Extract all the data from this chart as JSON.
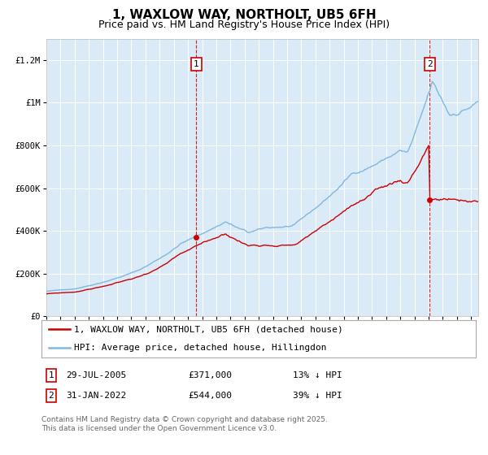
{
  "title": "1, WAXLOW WAY, NORTHOLT, UB5 6FH",
  "subtitle": "Price paid vs. HM Land Registry's House Price Index (HPI)",
  "ylim": [
    0,
    1300000
  ],
  "yticks": [
    0,
    200000,
    400000,
    600000,
    800000,
    1000000,
    1200000
  ],
  "ytick_labels": [
    "£0",
    "£200K",
    "£400K",
    "£600K",
    "£800K",
    "£1M",
    "£1.2M"
  ],
  "hpi_color": "#7fb8e0",
  "price_color": "#cc0000",
  "bg_color": "#daeaf6",
  "plot_bg": "#ffffff",
  "grid_color": "#ffffff",
  "legend_label_price": "1, WAXLOW WAY, NORTHOLT, UB5 6FH (detached house)",
  "legend_label_hpi": "HPI: Average price, detached house, Hillingdon",
  "event1_date": 2005.57,
  "event1_price": 371000,
  "event2_date": 2022.08,
  "event2_price": 544000,
  "event1_text": "29-JUL-2005",
  "event1_amount": "£371,000",
  "event1_hpi_text": "13% ↓ HPI",
  "event2_text": "31-JAN-2022",
  "event2_amount": "£544,000",
  "event2_hpi_text": "39% ↓ HPI",
  "footer": "Contains HM Land Registry data © Crown copyright and database right 2025.\nThis data is licensed under the Open Government Licence v3.0.",
  "title_fontsize": 11,
  "subtitle_fontsize": 9,
  "tick_fontsize": 7,
  "legend_fontsize": 8,
  "footer_fontsize": 6.5
}
